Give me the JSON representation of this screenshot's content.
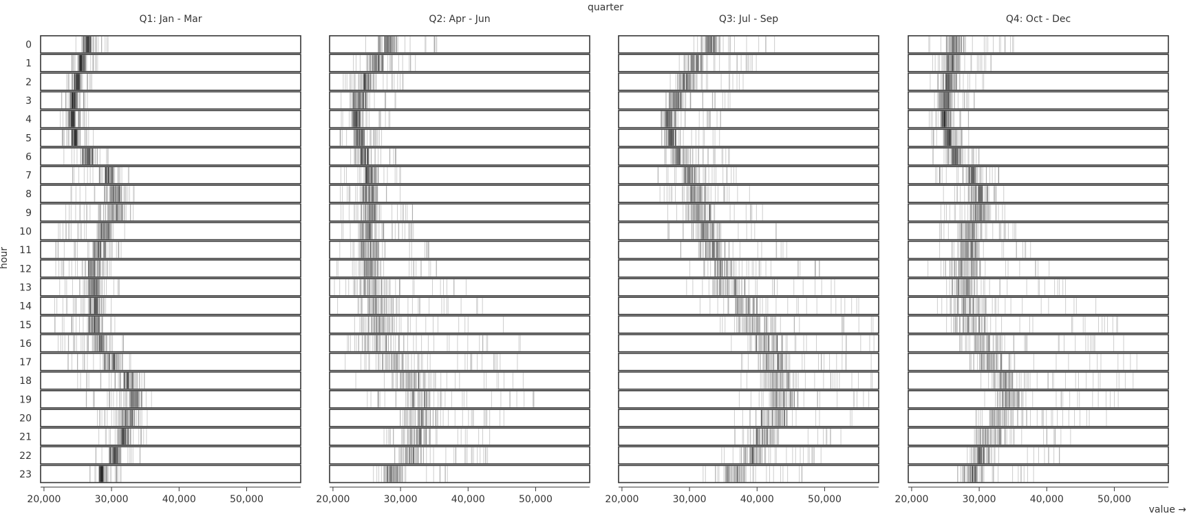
{
  "chart_data": {
    "type": "barcode",
    "title": "quarter",
    "xlabel": "value →",
    "ylabel": "hour",
    "xlim": [
      19500,
      58000
    ],
    "x_ticks": [
      20000,
      30000,
      40000,
      50000
    ],
    "x_tick_labels": [
      "20,000",
      "30,000",
      "40,000",
      "50,000"
    ],
    "hours": [
      "0",
      "1",
      "2",
      "3",
      "4",
      "5",
      "6",
      "7",
      "8",
      "9",
      "10",
      "11",
      "12",
      "13",
      "14",
      "15",
      "16",
      "17",
      "18",
      "19",
      "20",
      "21",
      "22",
      "23"
    ],
    "mark_color": "#000000",
    "mark_opacity": 0.2,
    "facets": [
      {
        "label": "Q1: Jan - Mar",
        "rows": [
          {
            "min": 24500,
            "max": 29500,
            "center": 26500
          },
          {
            "min": 24000,
            "max": 28000,
            "center": 25600
          },
          {
            "min": 23000,
            "max": 27200,
            "center": 24900
          },
          {
            "min": 22300,
            "max": 26800,
            "center": 24400
          },
          {
            "min": 22200,
            "max": 26800,
            "center": 24200
          },
          {
            "min": 22400,
            "max": 27400,
            "center": 24500
          },
          {
            "min": 22300,
            "max": 30000,
            "center": 26500
          },
          {
            "min": 23500,
            "max": 33500,
            "center": 29500
          },
          {
            "min": 23000,
            "max": 34500,
            "center": 30500
          },
          {
            "min": 22500,
            "max": 33500,
            "center": 30500
          },
          {
            "min": 22000,
            "max": 32000,
            "center": 29000
          },
          {
            "min": 21500,
            "max": 31500,
            "center": 28500
          },
          {
            "min": 21500,
            "max": 31500,
            "center": 27500
          },
          {
            "min": 21500,
            "max": 31500,
            "center": 27500
          },
          {
            "min": 21500,
            "max": 31500,
            "center": 27500
          },
          {
            "min": 21500,
            "max": 31500,
            "center": 27500
          },
          {
            "min": 22000,
            "max": 32000,
            "center": 28500
          },
          {
            "min": 23000,
            "max": 33000,
            "center": 30000
          },
          {
            "min": 24000,
            "max": 35000,
            "center": 32500
          },
          {
            "min": 26000,
            "max": 36000,
            "center": 33500
          },
          {
            "min": 27500,
            "max": 36500,
            "center": 32500
          },
          {
            "min": 28000,
            "max": 35500,
            "center": 32000
          },
          {
            "min": 27500,
            "max": 34500,
            "center": 30500
          },
          {
            "min": 26500,
            "max": 31500,
            "center": 28500
          }
        ]
      },
      {
        "label": "Q2: Apr - Jun",
        "rows": [
          {
            "min": 24000,
            "max": 35500,
            "center": 28000
          },
          {
            "min": 23000,
            "max": 32500,
            "center": 26500
          },
          {
            "min": 21500,
            "max": 30500,
            "center": 25000
          },
          {
            "min": 21000,
            "max": 29500,
            "center": 24000
          },
          {
            "min": 21000,
            "max": 28500,
            "center": 23500
          },
          {
            "min": 21000,
            "max": 28500,
            "center": 24000
          },
          {
            "min": 21000,
            "max": 29500,
            "center": 24500
          },
          {
            "min": 21000,
            "max": 30500,
            "center": 25500
          },
          {
            "min": 21000,
            "max": 31500,
            "center": 25500
          },
          {
            "min": 21000,
            "max": 32500,
            "center": 25500
          },
          {
            "min": 21000,
            "max": 33500,
            "center": 25500
          },
          {
            "min": 21000,
            "max": 34500,
            "center": 25500
          },
          {
            "min": 20500,
            "max": 37500,
            "center": 25500
          },
          {
            "min": 20000,
            "max": 40500,
            "center": 26000
          },
          {
            "min": 20000,
            "max": 43500,
            "center": 26500
          },
          {
            "min": 20000,
            "max": 45500,
            "center": 27000
          },
          {
            "min": 20000,
            "max": 48000,
            "center": 27000
          },
          {
            "min": 21000,
            "max": 49500,
            "center": 29000
          },
          {
            "min": 23000,
            "max": 50000,
            "center": 31500
          },
          {
            "min": 25000,
            "max": 50000,
            "center": 33000
          },
          {
            "min": 27000,
            "max": 46000,
            "center": 33000
          },
          {
            "min": 27000,
            "max": 45000,
            "center": 32500
          },
          {
            "min": 26500,
            "max": 43000,
            "center": 31500
          },
          {
            "min": 25000,
            "max": 38000,
            "center": 29000
          }
        ]
      },
      {
        "label": "Q3: Jul - Sep",
        "rows": [
          {
            "min": 29500,
            "max": 43000,
            "center": 33000
          },
          {
            "min": 28000,
            "max": 40000,
            "center": 31000
          },
          {
            "min": 27000,
            "max": 38000,
            "center": 29500
          },
          {
            "min": 26000,
            "max": 36000,
            "center": 28000
          },
          {
            "min": 25500,
            "max": 35000,
            "center": 27000
          },
          {
            "min": 25500,
            "max": 34500,
            "center": 27500
          },
          {
            "min": 25000,
            "max": 36000,
            "center": 28500
          },
          {
            "min": 25000,
            "max": 37500,
            "center": 30000
          },
          {
            "min": 25000,
            "max": 39000,
            "center": 31000
          },
          {
            "min": 25500,
            "max": 41500,
            "center": 32000
          },
          {
            "min": 26500,
            "max": 43500,
            "center": 32500
          },
          {
            "min": 27500,
            "max": 46500,
            "center": 33500
          },
          {
            "min": 28500,
            "max": 49500,
            "center": 34500
          },
          {
            "min": 29500,
            "max": 52000,
            "center": 36000
          },
          {
            "min": 31500,
            "max": 55500,
            "center": 38000
          },
          {
            "min": 34000,
            "max": 57500,
            "center": 40000
          },
          {
            "min": 35500,
            "max": 57500,
            "center": 41500
          },
          {
            "min": 37500,
            "max": 57500,
            "center": 42500
          },
          {
            "min": 37500,
            "max": 57500,
            "center": 43000
          },
          {
            "min": 37000,
            "max": 57000,
            "center": 43500
          },
          {
            "min": 36500,
            "max": 55000,
            "center": 42500
          },
          {
            "min": 36000,
            "max": 53500,
            "center": 41000
          },
          {
            "min": 34500,
            "max": 50500,
            "center": 39500
          },
          {
            "min": 32000,
            "max": 47000,
            "center": 37000
          }
        ]
      },
      {
        "label": "Q4: Oct - Dec",
        "rows": [
          {
            "min": 22500,
            "max": 35500,
            "center": 26500
          },
          {
            "min": 23000,
            "max": 33000,
            "center": 26000
          },
          {
            "min": 22500,
            "max": 31000,
            "center": 25500
          },
          {
            "min": 22000,
            "max": 30000,
            "center": 25000
          },
          {
            "min": 22000,
            "max": 28500,
            "center": 25000
          },
          {
            "min": 22500,
            "max": 28500,
            "center": 25500
          },
          {
            "min": 23000,
            "max": 30500,
            "center": 26500
          },
          {
            "min": 23500,
            "max": 33000,
            "center": 29000
          },
          {
            "min": 24000,
            "max": 34000,
            "center": 30000
          },
          {
            "min": 24000,
            "max": 34500,
            "center": 30000
          },
          {
            "min": 23500,
            "max": 35500,
            "center": 29000
          },
          {
            "min": 23000,
            "max": 38000,
            "center": 28500
          },
          {
            "min": 20000,
            "max": 41000,
            "center": 28000
          },
          {
            "min": 23000,
            "max": 44000,
            "center": 28000
          },
          {
            "min": 23500,
            "max": 47500,
            "center": 28500
          },
          {
            "min": 24500,
            "max": 50500,
            "center": 29000
          },
          {
            "min": 26000,
            "max": 52500,
            "center": 30500
          },
          {
            "min": 27500,
            "max": 53500,
            "center": 32000
          },
          {
            "min": 29000,
            "max": 53000,
            "center": 34500
          },
          {
            "min": 30000,
            "max": 51000,
            "center": 34500
          },
          {
            "min": 29000,
            "max": 49000,
            "center": 33000
          },
          {
            "min": 28500,
            "max": 46000,
            "center": 32000
          },
          {
            "min": 28000,
            "max": 42500,
            "center": 30500
          },
          {
            "min": 26500,
            "max": 38500,
            "center": 29000
          }
        ]
      }
    ]
  }
}
